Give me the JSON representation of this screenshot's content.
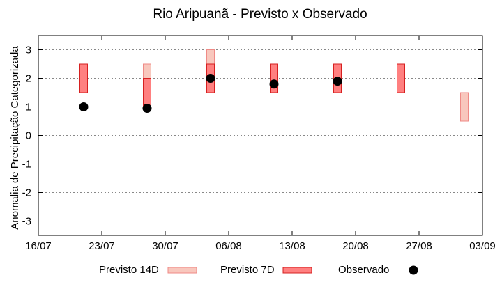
{
  "chart_data": {
    "type": "bar",
    "title": "Rio Aripuanã - Previsto x Observado",
    "ylabel": "Anomalia de Precipitação Categorizada",
    "xlabel": "",
    "ylim": [
      -3.5,
      3.5
    ],
    "xlim": [
      "2025-07-16",
      "2025-09-03"
    ],
    "yticks": [
      3,
      2,
      1,
      0,
      -1,
      -2,
      -3
    ],
    "ytick_labels": [
      "3",
      "2",
      "1",
      "0",
      "-1",
      "-2",
      "-3"
    ],
    "xticks": [
      {
        "date": "2025-07-16",
        "label": "16/07"
      },
      {
        "date": "2025-07-23",
        "label": "23/07"
      },
      {
        "date": "2025-07-30",
        "label": "30/07"
      },
      {
        "date": "2025-08-06",
        "label": "06/08"
      },
      {
        "date": "2025-08-13",
        "label": "13/08"
      },
      {
        "date": "2025-08-20",
        "label": "20/08"
      },
      {
        "date": "2025-08-27",
        "label": "27/08"
      },
      {
        "date": "2025-09-03",
        "label": "03/09"
      }
    ],
    "grid": "horizontal dotted",
    "legend_position": "bottom",
    "series": [
      {
        "name": "Previsto 14D",
        "kind": "range-bar",
        "color_fill": "#f8c7bd",
        "color_stroke": "#ef8a86",
        "points": [
          {
            "date": "2025-07-28",
            "low": 1.5,
            "high": 2.5
          },
          {
            "date": "2025-08-04",
            "low": 2.0,
            "high": 3.0
          },
          {
            "date": "2025-09-01",
            "low": 0.5,
            "high": 1.5
          }
        ]
      },
      {
        "name": "Previsto 7D",
        "kind": "range-bar",
        "color_fill": "#ff8080",
        "color_stroke": "#d62020",
        "points": [
          {
            "date": "2025-07-21",
            "low": 1.5,
            "high": 2.5
          },
          {
            "date": "2025-07-28",
            "low": 1.0,
            "high": 2.0
          },
          {
            "date": "2025-08-04",
            "low": 1.5,
            "high": 2.5
          },
          {
            "date": "2025-08-11",
            "low": 1.5,
            "high": 2.5
          },
          {
            "date": "2025-08-18",
            "low": 1.5,
            "high": 2.5
          },
          {
            "date": "2025-08-25",
            "low": 1.5,
            "high": 2.5
          }
        ]
      },
      {
        "name": "Observado",
        "kind": "point",
        "color": "#000000",
        "points": [
          {
            "date": "2025-07-21",
            "value": 1.0
          },
          {
            "date": "2025-07-28",
            "value": 0.95
          },
          {
            "date": "2025-08-04",
            "value": 2.0
          },
          {
            "date": "2025-08-11",
            "value": 1.8
          },
          {
            "date": "2025-08-18",
            "value": 1.9
          }
        ]
      }
    ]
  }
}
